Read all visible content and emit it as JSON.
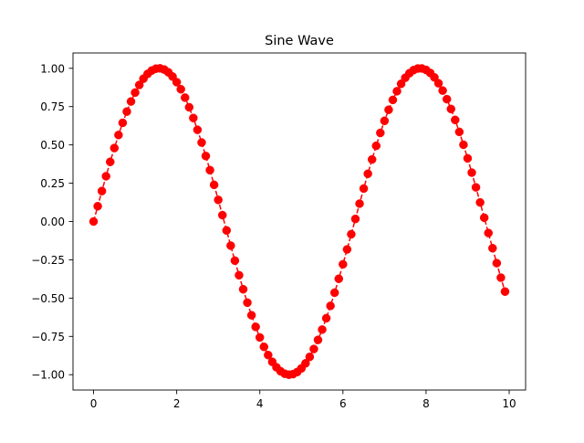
{
  "chart_data": {
    "type": "line",
    "title": "Sine Wave",
    "xlabel": "",
    "ylabel": "",
    "xlim": [
      -0.495,
      10.395
    ],
    "ylim": [
      -1.1,
      1.1
    ],
    "x_ticks": [
      0,
      2,
      4,
      6,
      8,
      10
    ],
    "x_tick_labels": [
      "0",
      "2",
      "4",
      "6",
      "8",
      "10"
    ],
    "y_ticks": [
      -1.0,
      -0.75,
      -0.5,
      -0.25,
      0.0,
      0.25,
      0.5,
      0.75,
      1.0
    ],
    "y_tick_labels": [
      "−1.00",
      "−0.75",
      "−0.50",
      "−0.25",
      "0.00",
      "0.25",
      "0.50",
      "0.75",
      "1.00"
    ],
    "grid": false,
    "legend": "none",
    "series": [
      {
        "color": "#ff0000",
        "marker": "circle",
        "linestyle": "dashed",
        "x": [
          0.0,
          0.1,
          0.2,
          0.3,
          0.4,
          0.5,
          0.6,
          0.7,
          0.8,
          0.9,
          1.0,
          1.1,
          1.2,
          1.3,
          1.4,
          1.5,
          1.6,
          1.7,
          1.8,
          1.9,
          2.0,
          2.1,
          2.2,
          2.3,
          2.4,
          2.5,
          2.6,
          2.7,
          2.8,
          2.9,
          3.0,
          3.1,
          3.2,
          3.3,
          3.4,
          3.5,
          3.6,
          3.7,
          3.8,
          3.9,
          4.0,
          4.1,
          4.2,
          4.3,
          4.4,
          4.5,
          4.6,
          4.7,
          4.8,
          4.9,
          5.0,
          5.1,
          5.2,
          5.3,
          5.4,
          5.5,
          5.6,
          5.7,
          5.8,
          5.9,
          6.0,
          6.1,
          6.2,
          6.3,
          6.4,
          6.5,
          6.6,
          6.7,
          6.8,
          6.9,
          7.0,
          7.1,
          7.2,
          7.3,
          7.4,
          7.5,
          7.6,
          7.7,
          7.8,
          7.9,
          8.0,
          8.1,
          8.2,
          8.3,
          8.4,
          8.5,
          8.6,
          8.7,
          8.8,
          8.9,
          9.0,
          9.1,
          9.2,
          9.3,
          9.4,
          9.5,
          9.6,
          9.7,
          9.8,
          9.9
        ],
        "y": [
          0.0,
          0.0998,
          0.1987,
          0.2955,
          0.3894,
          0.4794,
          0.5646,
          0.6442,
          0.7174,
          0.7833,
          0.8415,
          0.8912,
          0.932,
          0.9636,
          0.9854,
          0.9975,
          0.9996,
          0.9917,
          0.9738,
          0.9463,
          0.9093,
          0.8632,
          0.8085,
          0.7457,
          0.6755,
          0.5985,
          0.5155,
          0.4274,
          0.335,
          0.2392,
          0.1411,
          0.0416,
          -0.0584,
          -0.1577,
          -0.2555,
          -0.3508,
          -0.4425,
          -0.5298,
          -0.6119,
          -0.6878,
          -0.7568,
          -0.8183,
          -0.8716,
          -0.9162,
          -0.9516,
          -0.9775,
          -0.9937,
          -0.9999,
          -0.9962,
          -0.9825,
          -0.9589,
          -0.9258,
          -0.8835,
          -0.8323,
          -0.7728,
          -0.7055,
          -0.6313,
          -0.5507,
          -0.4646,
          -0.3739,
          -0.2794,
          -0.1822,
          -0.0831,
          0.0168,
          0.1165,
          0.2151,
          0.3115,
          0.4048,
          0.494,
          0.5784,
          0.657,
          0.7292,
          0.7937,
          0.8504,
          0.8987,
          0.938,
          0.9679,
          0.9882,
          0.9985,
          0.9989,
          0.9894,
          0.9699,
          0.9407,
          0.9022,
          0.8546,
          0.7985,
          0.7344,
          0.663,
          0.585,
          0.501,
          0.4121,
          0.319,
          0.2229,
          0.1245,
          0.0248,
          -0.0752,
          -0.1743,
          -0.2718,
          -0.3665,
          -0.4575
        ]
      }
    ]
  }
}
